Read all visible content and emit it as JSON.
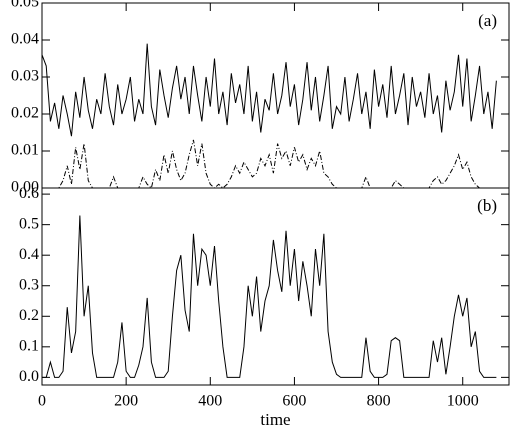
{
  "chart_data": [
    {
      "type": "line",
      "annotation": "(a)",
      "x": [
        0,
        10,
        20,
        30,
        40,
        50,
        60,
        70,
        80,
        90,
        100,
        110,
        120,
        130,
        140,
        150,
        160,
        170,
        180,
        190,
        200,
        210,
        220,
        230,
        240,
        250,
        260,
        270,
        280,
        290,
        300,
        310,
        320,
        330,
        340,
        350,
        360,
        370,
        380,
        390,
        400,
        410,
        420,
        430,
        440,
        450,
        460,
        470,
        480,
        490,
        500,
        510,
        520,
        530,
        540,
        550,
        560,
        570,
        580,
        590,
        600,
        610,
        620,
        630,
        640,
        650,
        660,
        670,
        680,
        690,
        700,
        710,
        720,
        730,
        740,
        750,
        760,
        770,
        780,
        790,
        800,
        810,
        820,
        830,
        840,
        850,
        860,
        870,
        880,
        890,
        900,
        910,
        920,
        930,
        940,
        950,
        960,
        970,
        980,
        990,
        1000,
        1010,
        1020,
        1030,
        1040,
        1050,
        1060,
        1070,
        1080
      ],
      "series": [
        {
          "color": "#000000",
          "line_style": "solid",
          "values": [
            0.036,
            0.033,
            0.018,
            0.023,
            0.016,
            0.025,
            0.02,
            0.014,
            0.026,
            0.019,
            0.03,
            0.021,
            0.016,
            0.024,
            0.02,
            0.031,
            0.022,
            0.017,
            0.028,
            0.02,
            0.024,
            0.03,
            0.018,
            0.024,
            0.02,
            0.039,
            0.022,
            0.017,
            0.032,
            0.025,
            0.019,
            0.027,
            0.033,
            0.024,
            0.03,
            0.02,
            0.033,
            0.025,
            0.018,
            0.03,
            0.022,
            0.035,
            0.02,
            0.026,
            0.017,
            0.031,
            0.023,
            0.028,
            0.02,
            0.033,
            0.018,
            0.026,
            0.015,
            0.024,
            0.021,
            0.031,
            0.02,
            0.025,
            0.034,
            0.022,
            0.028,
            0.017,
            0.024,
            0.034,
            0.021,
            0.03,
            0.018,
            0.025,
            0.033,
            0.016,
            0.022,
            0.02,
            0.03,
            0.018,
            0.024,
            0.031,
            0.02,
            0.026,
            0.016,
            0.032,
            0.022,
            0.028,
            0.019,
            0.033,
            0.02,
            0.025,
            0.031,
            0.017,
            0.03,
            0.022,
            0.026,
            0.019,
            0.031,
            0.02,
            0.025,
            0.015,
            0.029,
            0.021,
            0.026,
            0.036,
            0.022,
            0.035,
            0.018,
            0.025,
            0.033,
            0.02,
            0.026,
            0.016,
            0.029
          ]
        },
        {
          "color": "#000000",
          "line_style": "dash-dot",
          "values": [
            0,
            0,
            0,
            0,
            0,
            0.002,
            0.006,
            0.001,
            0.011,
            0.005,
            0.012,
            0.002,
            0,
            0,
            0,
            0,
            0,
            0.003,
            0,
            0,
            0,
            0,
            0,
            0,
            0.003,
            0.001,
            0,
            0.005,
            0.002,
            0.009,
            0.004,
            0.01,
            0.005,
            0.002,
            0.004,
            0.009,
            0.013,
            0.006,
            0.012,
            0.004,
            0.001,
            0,
            0.001,
            0,
            0.001,
            0.003,
            0.006,
            0.004,
            0.007,
            0.005,
            0.003,
            0.004,
            0.008,
            0.006,
            0.009,
            0.004,
            0.012,
            0.008,
            0.01,
            0.006,
            0.011,
            0.007,
            0.009,
            0.005,
            0.008,
            0.006,
            0.01,
            0.004,
            0.003,
            0.001,
            0,
            0,
            0,
            0,
            0,
            0,
            0,
            0.003,
            0,
            0,
            0,
            0,
            0,
            0,
            0.002,
            0.001,
            0,
            0,
            0,
            0,
            0,
            0,
            0,
            0.002,
            0.003,
            0.001,
            0.002,
            0.004,
            0.006,
            0.009,
            0.005,
            0.007,
            0.003,
            0.001,
            0,
            0,
            0,
            0,
            0
          ]
        }
      ],
      "xlim": [
        0,
        1110
      ],
      "ylim": [
        0,
        0.05
      ],
      "yticks": [
        {
          "value": 0,
          "label": "0.00"
        },
        0.01,
        0.02,
        0.03,
        0.04,
        0.05
      ]
    },
    {
      "type": "line",
      "annotation": "(b)",
      "xlabel": "time",
      "x": [
        0,
        10,
        20,
        30,
        40,
        50,
        60,
        70,
        80,
        90,
        100,
        110,
        120,
        130,
        140,
        150,
        160,
        170,
        180,
        190,
        200,
        210,
        220,
        230,
        240,
        250,
        260,
        270,
        280,
        290,
        300,
        310,
        320,
        330,
        340,
        350,
        360,
        370,
        380,
        390,
        400,
        410,
        420,
        430,
        440,
        450,
        460,
        470,
        480,
        490,
        500,
        510,
        520,
        530,
        540,
        550,
        560,
        570,
        580,
        590,
        600,
        610,
        620,
        630,
        640,
        650,
        660,
        670,
        680,
        690,
        700,
        710,
        720,
        730,
        740,
        750,
        760,
        770,
        780,
        790,
        800,
        810,
        820,
        830,
        840,
        850,
        860,
        870,
        880,
        890,
        900,
        910,
        920,
        930,
        940,
        950,
        960,
        970,
        980,
        990,
        1000,
        1010,
        1020,
        1030,
        1040,
        1050,
        1060,
        1070,
        1080
      ],
      "series": [
        {
          "color": "#000000",
          "line_style": "solid",
          "values": [
            0,
            0,
            0.05,
            0,
            0,
            0.02,
            0.23,
            0.08,
            0.15,
            0.53,
            0.2,
            0.3,
            0.08,
            0,
            0,
            0,
            0,
            0,
            0.05,
            0.18,
            0.02,
            0,
            0,
            0.04,
            0.1,
            0.26,
            0.05,
            0,
            0,
            0,
            0.02,
            0.2,
            0.35,
            0.4,
            0.22,
            0.15,
            0.47,
            0.3,
            0.42,
            0.4,
            0.3,
            0.43,
            0.25,
            0.1,
            0,
            0,
            0,
            0,
            0.1,
            0.3,
            0.2,
            0.33,
            0.15,
            0.25,
            0.3,
            0.45,
            0.35,
            0.28,
            0.48,
            0.3,
            0.42,
            0.25,
            0.38,
            0.3,
            0.2,
            0.42,
            0.3,
            0.47,
            0.15,
            0.05,
            0.01,
            0,
            0,
            0,
            0,
            0,
            0,
            0.13,
            0.02,
            0,
            0,
            0,
            0.01,
            0.12,
            0.13,
            0.12,
            0,
            0,
            0,
            0,
            0,
            0,
            0,
            0.12,
            0.05,
            0.13,
            0.01,
            0.1,
            0.2,
            0.27,
            0.2,
            0.26,
            0.1,
            0.15,
            0.02,
            0,
            0,
            0,
            0
          ]
        }
      ],
      "xlim": [
        0,
        1110
      ],
      "ylim": [
        -0.025,
        0.62
      ],
      "xticks": [
        0,
        200,
        400,
        600,
        800,
        1000
      ],
      "yticks": [
        {
          "value": 0,
          "label": "0.0"
        },
        0.1,
        0.2,
        0.3,
        0.4,
        0.5,
        0.6
      ]
    }
  ]
}
